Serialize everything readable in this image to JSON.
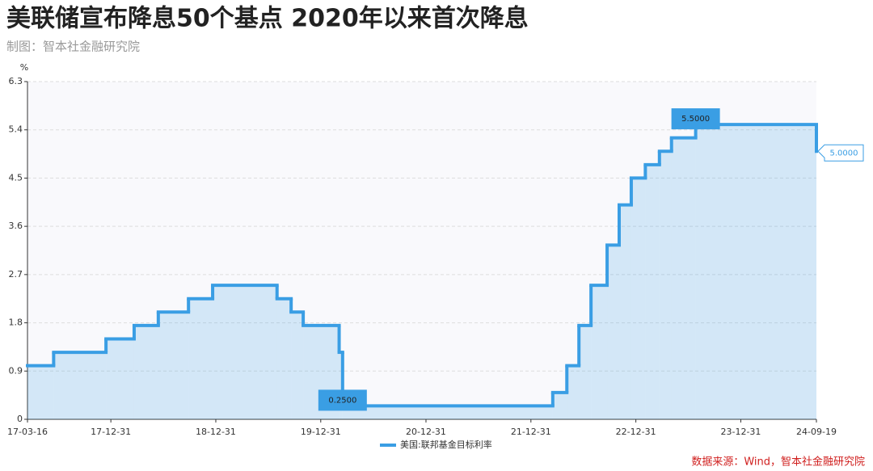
{
  "chart_data": {
    "type": "step-area",
    "title": "美联储宣布降息50个基点 2020年以来首次降息",
    "subtitle": "制图：智本社金融研究院",
    "y_label": "%",
    "source": "数据来源：Wind，智本社金融研究院",
    "xlim": [
      "17-03-16",
      "24-09-19"
    ],
    "xticks": [
      "17-03-16",
      "17-12-31",
      "18-12-31",
      "19-12-31",
      "20-12-31",
      "21-12-31",
      "22-12-31",
      "23-12-31",
      "24-09-19"
    ],
    "ylim": [
      0,
      6.3
    ],
    "yticks": [
      0,
      0.9,
      1.8,
      2.7,
      3.6,
      4.5,
      5.4,
      6.3
    ],
    "grid": true,
    "legend": "bottom",
    "series": [
      {
        "name": "美国:联邦基金目标利率",
        "color": "#3a9ee4",
        "x": [
          "17-03-16",
          "17-06-15",
          "17-12-14",
          "18-03-22",
          "18-06-14",
          "18-09-27",
          "18-12-20",
          "19-08-01",
          "19-09-19",
          "19-10-31",
          "20-03-04",
          "20-03-16",
          "22-03-17",
          "22-05-05",
          "22-06-16",
          "22-07-28",
          "22-09-22",
          "22-11-03",
          "22-12-15",
          "23-02-02",
          "23-03-23",
          "23-05-04",
          "23-07-27",
          "24-09-19"
        ],
        "values": [
          1.0,
          1.25,
          1.5,
          1.75,
          2.0,
          2.25,
          2.5,
          2.25,
          2.0,
          1.75,
          1.25,
          0.25,
          0.5,
          1.0,
          1.75,
          2.5,
          3.25,
          4.0,
          4.5,
          4.75,
          5.0,
          5.25,
          5.5,
          5.0
        ],
        "value_labels": [
          null,
          null,
          null,
          null,
          null,
          null,
          null,
          null,
          null,
          null,
          null,
          "0.2500",
          null,
          null,
          null,
          null,
          null,
          null,
          null,
          null,
          null,
          null,
          "5.5000",
          "5.0000"
        ]
      }
    ]
  }
}
